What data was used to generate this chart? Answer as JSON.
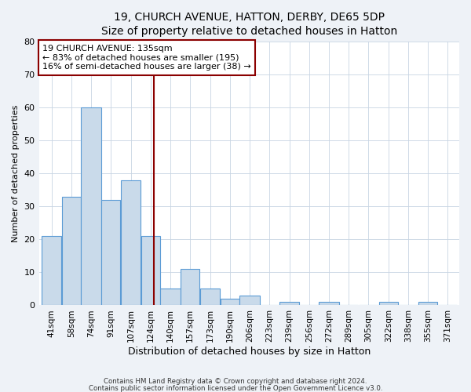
{
  "title": "19, CHURCH AVENUE, HATTON, DERBY, DE65 5DP",
  "subtitle": "Size of property relative to detached houses in Hatton",
  "xlabel": "Distribution of detached houses by size in Hatton",
  "ylabel": "Number of detached properties",
  "bin_labels": [
    "41sqm",
    "58sqm",
    "74sqm",
    "91sqm",
    "107sqm",
    "124sqm",
    "140sqm",
    "157sqm",
    "173sqm",
    "190sqm",
    "206sqm",
    "223sqm",
    "239sqm",
    "256sqm",
    "272sqm",
    "289sqm",
    "305sqm",
    "322sqm",
    "338sqm",
    "355sqm",
    "371sqm"
  ],
  "bin_edges": [
    41,
    58,
    74,
    91,
    107,
    124,
    140,
    157,
    173,
    190,
    206,
    223,
    239,
    256,
    272,
    289,
    305,
    322,
    338,
    355,
    371,
    387
  ],
  "counts": [
    21,
    33,
    60,
    32,
    38,
    21,
    5,
    11,
    5,
    2,
    3,
    0,
    1,
    0,
    1,
    0,
    0,
    1,
    0,
    1,
    0
  ],
  "property_size": 135,
  "bar_color": "#c9daea",
  "bar_edge_color": "#5b9bd5",
  "vline_color": "#8b0000",
  "annotation_box_color": "#8b0000",
  "annotation_line1": "19 CHURCH AVENUE: 135sqm",
  "annotation_line2": "← 83% of detached houses are smaller (195)",
  "annotation_line3": "16% of semi-detached houses are larger (38) →",
  "ylim": [
    0,
    80
  ],
  "yticks": [
    0,
    10,
    20,
    30,
    40,
    50,
    60,
    70,
    80
  ],
  "title_fontsize": 10,
  "xlabel_fontsize": 9,
  "ylabel_fontsize": 8,
  "tick_fontsize": 7.5,
  "annotation_fontsize": 8,
  "footer1": "Contains HM Land Registry data © Crown copyright and database right 2024.",
  "footer2": "Contains public sector information licensed under the Open Government Licence v3.0.",
  "background_color": "#eef2f7",
  "plot_background_color": "#ffffff",
  "grid_color": "#c8d4e3"
}
